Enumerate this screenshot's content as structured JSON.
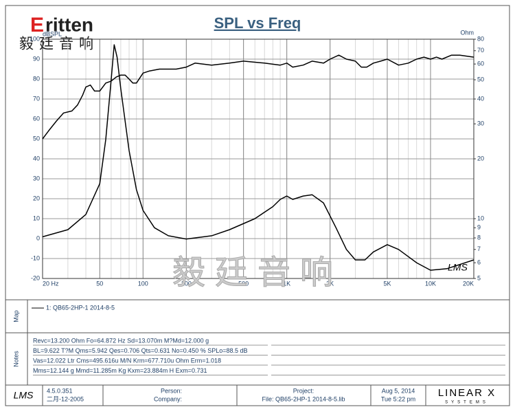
{
  "chart_data": {
    "type": "line",
    "title": "SPL vs Freq",
    "y_label": "dBSPL",
    "y2_label": "Ohm",
    "xlim": [
      20,
      20000
    ],
    "log_x": true,
    "xticks": [
      {
        "value": 20,
        "label": "20 Hz"
      },
      50,
      100,
      200,
      500,
      {
        "value": 1000,
        "label": "1K"
      },
      {
        "value": 2000,
        "label": "2K"
      },
      {
        "value": 5000,
        "label": "5K"
      },
      {
        "value": 10000,
        "label": "10K"
      },
      {
        "value": 20000,
        "label": "20K"
      }
    ],
    "ylim": [
      -20,
      100
    ],
    "yticks": [
      -20,
      -10,
      0,
      10,
      20,
      30,
      40,
      50,
      60,
      70,
      80,
      90,
      100
    ],
    "y2lim": [
      5,
      80
    ],
    "log_y2": true,
    "y2ticks": [
      5,
      6,
      7,
      8,
      9,
      10,
      20,
      30,
      40,
      50,
      60,
      70,
      80
    ],
    "grid": true,
    "series": [
      {
        "name": "1: QB65-2HP-1   2014-8-5",
        "color": "#000000",
        "x": [
          20,
          22,
          25,
          28,
          32,
          35,
          38,
          40,
          43,
          46,
          50,
          55,
          60,
          65,
          70,
          75,
          80,
          85,
          90,
          100,
          110,
          130,
          170,
          200,
          230,
          300,
          400,
          500,
          700,
          900,
          1000,
          1100,
          1300,
          1500,
          1800,
          2000,
          2300,
          2600,
          3000,
          3300,
          3600,
          4000,
          4500,
          5000,
          6000,
          7000,
          8000,
          9000,
          10000,
          11000,
          12000,
          14000,
          16000,
          20000
        ],
        "values": [
          50,
          54,
          59,
          63,
          64,
          67,
          72,
          76,
          77,
          74,
          74,
          78,
          79,
          81,
          82,
          82,
          80,
          78,
          78,
          83,
          84,
          85,
          85,
          86,
          88,
          87,
          88,
          89,
          88,
          87,
          88,
          86,
          87,
          89,
          88,
          90,
          92,
          90,
          89,
          86,
          86,
          88,
          89,
          90,
          87,
          88,
          90,
          91,
          90,
          91,
          90,
          92,
          92,
          91
        ]
      },
      {
        "axis": "y2",
        "color": "#000000",
        "x": [
          20,
          30,
          40,
          50,
          55,
          60,
          63,
          66,
          70,
          80,
          90,
          100,
          120,
          150,
          200,
          300,
          400,
          600,
          800,
          900,
          1000,
          1100,
          1300,
          1500,
          1800,
          2200,
          2600,
          3000,
          3500,
          4000,
          5000,
          6000,
          8000,
          10000,
          13000,
          20000
        ],
        "values": [
          8.1,
          8.8,
          10.5,
          15,
          25,
          50,
          75,
          65,
          45,
          22,
          14,
          11,
          9,
          8.2,
          7.9,
          8.2,
          8.8,
          10,
          11.5,
          12.5,
          13,
          12.5,
          13,
          13.2,
          12,
          9,
          7,
          6.2,
          6.2,
          6.8,
          7.4,
          7,
          6,
          5.5,
          5.6,
          6.2
        ]
      }
    ]
  },
  "logo": {
    "brand": "ritten",
    "initial": "E",
    "chinese": "毅廷音响",
    "watermark": "毅廷音响",
    "signature": "LMS"
  },
  "map": {
    "label": "Map"
  },
  "notes": {
    "label": "Notes",
    "lines": [
      "Revc=13.200 Ohm  Fo=64.872 Hz  Sd=13.070m M?Md=12.000 g",
      "BL=9.622 T?M  Qms=5.942  Qes=0.706  Qts=0.631  No=0.450 %  SPLo=88.5 dB",
      "Vas=12.022 Ltr  Cms=495.616u M/N  Krm=677.710u Ohm  Erm=1.018",
      "Mms=12.144 g  Mmd=11.285m Kg  Kxm=23.884m H  Exm=0.731"
    ]
  },
  "footer": {
    "app": "LMS",
    "version": "4.5.0.351",
    "build_date": "二月-12-2005",
    "person": "Person:",
    "company": "Company:",
    "project": "Project:",
    "file": "File: QB65-2HP-1    2014-8-5.lib",
    "date": "Aug  5, 2014",
    "time": "Tue  5:22 pm",
    "vendor": "LINEAR X",
    "vendor_sub": "SYSTEMS"
  }
}
